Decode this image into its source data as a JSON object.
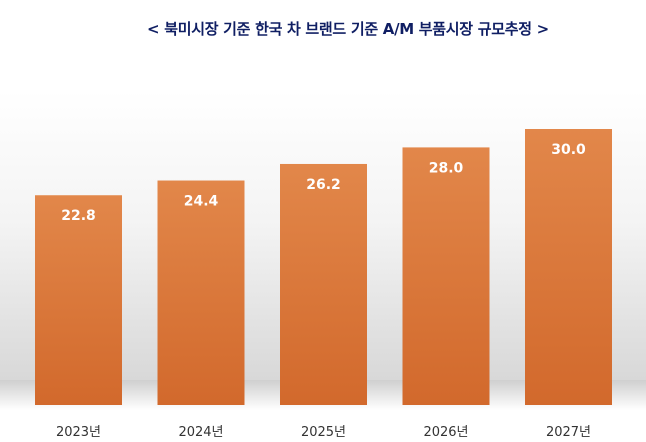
{
  "chart_data": {
    "type": "bar",
    "title": "< 북미시장 기준 한국 차 브랜드 기준 A/M 부품시장 규모추정 >",
    "categories": [
      "2023년",
      "2024년",
      "2025년",
      "2026년",
      "2027년"
    ],
    "values": [
      22.8,
      24.4,
      26.2,
      28.0,
      30.0
    ],
    "value_labels": [
      "22.8",
      "24.4",
      "26.2",
      "28.0",
      "30.0"
    ],
    "xlabel": "",
    "ylabel": "",
    "ylim": [
      0,
      30
    ],
    "grid": false,
    "legend": "none",
    "colors": {
      "bar_top": "#e2874a",
      "bar_bottom": "#d2692c",
      "title": "#0f1e63",
      "background_shade": "#dcdcdc"
    }
  }
}
